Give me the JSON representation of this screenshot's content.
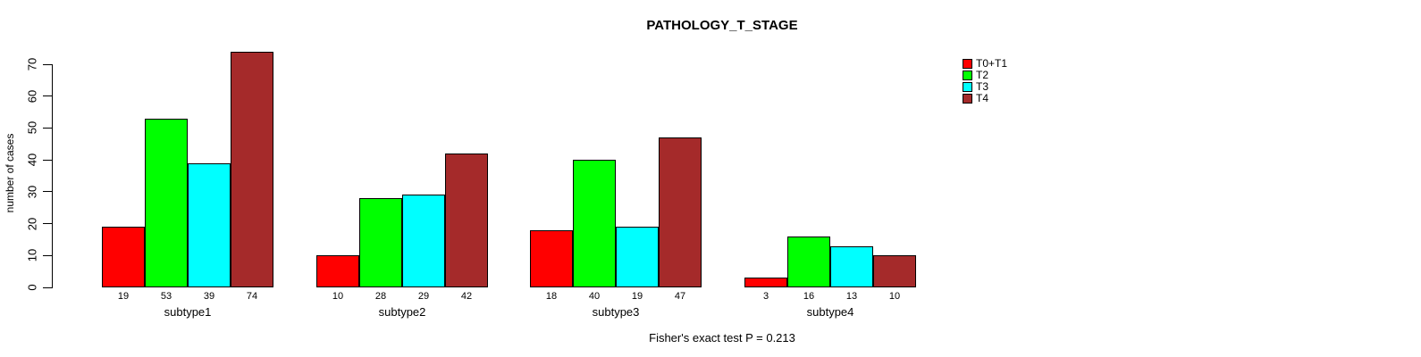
{
  "chart_data": {
    "type": "bar",
    "title": "PATHOLOGY_T_STAGE",
    "ylabel": "number of cases",
    "xlabel": "",
    "categories": [
      "subtype1",
      "subtype2",
      "subtype3",
      "subtype4"
    ],
    "series": [
      {
        "name": "T0+T1",
        "color": "#ff0000",
        "values": [
          19,
          10,
          18,
          3
        ]
      },
      {
        "name": "T2",
        "color": "#00ff00",
        "values": [
          53,
          28,
          40,
          16
        ]
      },
      {
        "name": "T3",
        "color": "#00ffff",
        "values": [
          39,
          29,
          19,
          13
        ]
      },
      {
        "name": "T4",
        "color": "#a52a2a",
        "values": [
          74,
          42,
          47,
          10
        ]
      }
    ],
    "yticks": [
      0,
      10,
      20,
      30,
      40,
      50,
      60,
      70
    ],
    "ylim": [
      0,
      74
    ],
    "grid": false,
    "bar_value_labels_shown": true,
    "legend_position": "top-right",
    "annotation": "Fisher's exact test P = 0.213"
  }
}
